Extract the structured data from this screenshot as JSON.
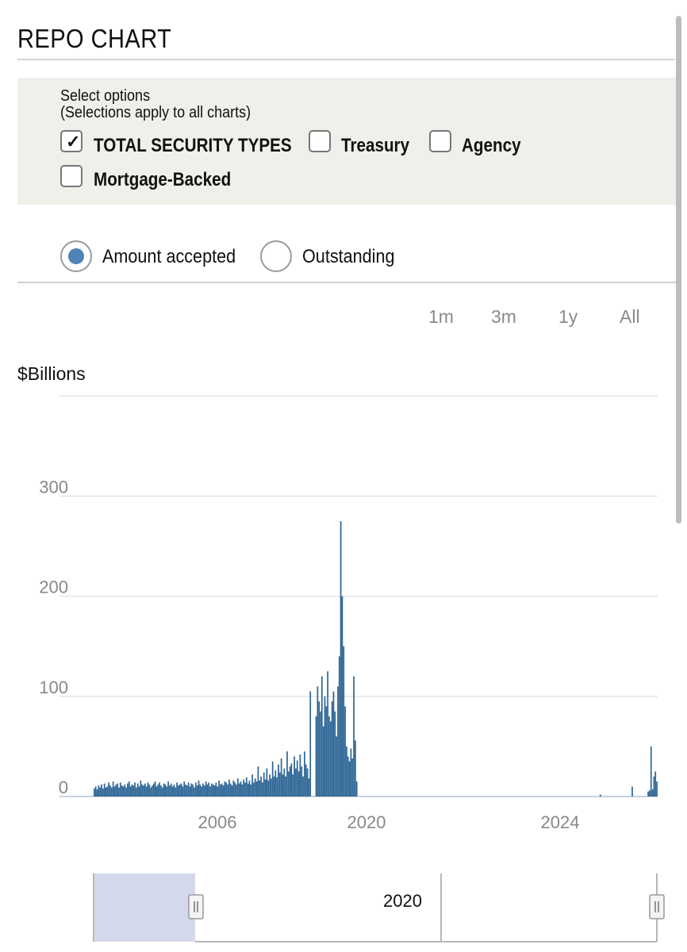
{
  "header": {
    "title": "REPO CHART"
  },
  "options": {
    "title": "Select options",
    "subtitle": "(Selections apply to all charts)",
    "checkboxes": [
      {
        "label": "TOTAL SECURITY TYPES",
        "checked": true
      },
      {
        "label": "Treasury",
        "checked": false
      },
      {
        "label": "Agency",
        "checked": false
      },
      {
        "label": "Mortgage-Backed",
        "checked": false
      }
    ]
  },
  "mode": {
    "options": [
      {
        "label": "Amount accepted",
        "selected": true
      },
      {
        "label": "Outstanding",
        "selected": false
      }
    ]
  },
  "range_buttons": [
    "1m",
    "3m",
    "1y",
    "All"
  ],
  "navigator": {
    "label": "2020"
  },
  "colors": {
    "bar": "#2f6796",
    "grid": "#dfe6ee",
    "accent": "#4e84b6",
    "navigator_fill": "#d3d9ea"
  },
  "chart_data": {
    "type": "bar",
    "ylabel": "$Billions",
    "ylim": [
      0,
      400
    ],
    "yticks": [
      0,
      100,
      200,
      300
    ],
    "xtick_labels": [
      "2006",
      "2020",
      "2024"
    ],
    "grid": true,
    "series": [
      {
        "values": [
          8,
          10,
          7,
          11,
          9,
          12,
          8,
          13,
          9,
          10,
          14,
          11,
          9,
          15,
          10,
          12,
          13,
          9,
          14,
          11,
          10,
          12,
          9,
          13,
          15,
          10,
          12,
          11,
          14,
          9,
          13,
          10,
          16,
          12,
          11,
          13,
          10,
          14,
          12,
          9,
          11,
          13,
          15,
          10,
          12,
          14,
          11,
          9,
          13,
          12,
          10,
          15,
          11,
          13,
          10,
          12,
          9,
          14,
          11,
          12,
          13,
          10,
          15,
          12,
          11,
          14,
          10,
          13,
          12,
          9,
          14,
          11,
          16,
          12,
          10,
          13,
          11,
          15,
          12,
          14,
          10,
          13,
          12,
          11,
          14,
          10,
          16,
          12,
          13,
          11,
          15,
          14,
          12,
          17,
          13,
          11,
          16,
          14,
          12,
          18,
          13,
          15,
          12,
          17,
          14,
          19,
          13,
          16,
          12,
          22,
          14,
          18,
          15,
          30,
          16,
          20,
          14,
          24,
          17,
          28,
          16,
          22,
          18,
          35,
          20,
          26,
          19,
          32,
          24,
          38,
          22,
          28,
          20,
          45,
          25,
          30,
          33,
          22,
          40,
          28,
          36,
          25,
          42,
          30,
          20,
          45,
          32,
          28,
          18,
          105,
          0,
          0,
          0,
          80,
          110,
          95,
          85,
          120,
          70,
          100,
          90,
          125,
          80,
          75,
          95,
          105,
          85,
          60,
          110,
          140,
          275,
          200,
          150,
          90,
          50,
          40,
          35,
          48,
          38,
          120,
          56,
          15,
          0,
          0,
          0,
          0,
          0,
          0,
          0,
          0,
          0,
          0,
          0,
          0,
          0,
          0,
          0,
          0,
          0,
          0,
          0,
          0,
          0,
          0,
          0,
          0,
          0,
          0,
          0,
          0,
          0,
          0,
          0,
          0,
          0,
          0,
          0,
          0,
          0,
          0,
          0,
          0,
          0,
          0,
          0,
          0,
          0,
          0,
          0,
          0,
          0,
          0,
          0,
          0,
          0,
          0,
          0,
          0,
          0,
          0,
          0,
          0,
          0,
          0,
          0,
          0,
          0,
          0,
          0,
          0,
          0,
          0,
          0,
          0,
          0,
          0,
          0,
          0,
          0,
          0,
          0,
          0,
          0,
          0,
          0,
          0,
          0,
          0,
          0,
          0,
          0,
          0,
          0,
          0,
          0,
          0,
          0,
          0,
          0,
          0,
          0,
          0,
          0,
          0,
          0,
          0,
          0,
          0,
          0,
          0,
          0,
          0,
          0,
          0,
          0,
          0,
          0,
          0,
          0,
          0,
          0,
          0,
          0,
          0,
          0,
          0,
          0,
          0,
          0,
          0,
          0,
          0,
          0,
          0,
          0,
          0,
          0,
          0,
          0,
          0,
          0,
          0,
          0,
          0,
          0,
          0,
          0,
          0,
          0,
          0,
          0,
          0,
          0,
          0,
          0,
          0,
          0,
          0,
          0,
          0,
          0,
          0,
          0,
          0,
          0,
          0,
          0,
          0,
          0,
          2,
          0,
          0,
          0,
          0,
          0,
          0,
          0,
          0,
          0,
          0,
          0,
          0,
          0,
          0,
          0,
          0,
          0,
          0,
          0,
          0,
          0,
          10,
          0,
          0,
          0,
          0,
          0,
          0,
          0,
          0,
          0,
          0,
          5,
          6,
          50,
          7,
          20,
          25,
          15
        ]
      }
    ]
  }
}
